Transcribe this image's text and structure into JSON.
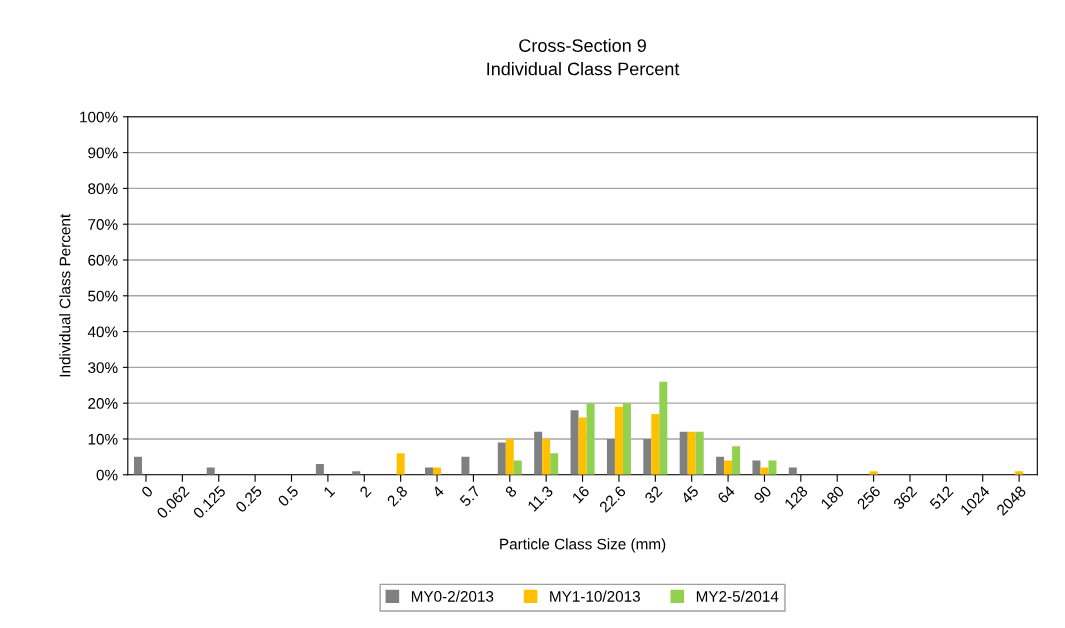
{
  "chart_data": {
    "type": "bar",
    "title": "Cross-Section 9\nIndividual Class Percent",
    "xlabel": "Particle Class Size (mm)",
    "ylabel": "Individual Class Percent",
    "categories": [
      "0",
      "0.062",
      "0.125",
      "0.25",
      "0.5",
      "1",
      "2",
      "2.8",
      "4",
      "5.7",
      "8",
      "11.3",
      "16",
      "22.6",
      "32",
      "45",
      "64",
      "90",
      "128",
      "180",
      "256",
      "362",
      "512",
      "1024",
      "2048"
    ],
    "series": [
      {
        "name": "MY0-2/2013",
        "color": "#808080",
        "values": [
          5,
          0,
          2,
          0,
          0,
          3,
          1,
          0,
          2,
          5,
          9,
          12,
          18,
          10,
          10,
          12,
          5,
          4,
          2,
          0,
          0,
          0,
          0,
          0,
          0
        ]
      },
      {
        "name": "MY1-10/2013",
        "color": "#ffc000",
        "values": [
          0,
          0,
          0,
          0,
          0,
          0,
          0,
          6,
          2,
          0,
          10,
          10,
          16,
          19,
          17,
          12,
          4,
          2,
          0,
          0,
          1,
          0,
          0,
          0,
          1
        ]
      },
      {
        "name": "MY2-5/2014",
        "color": "#92d050",
        "values": [
          0,
          0,
          0,
          0,
          0,
          0,
          0,
          0,
          0,
          0,
          4,
          6,
          20,
          20,
          26,
          12,
          8,
          4,
          0,
          0,
          0,
          0,
          0,
          0,
          0
        ]
      }
    ],
    "ylim": [
      0,
      100
    ],
    "yticks": [
      {
        "value": 0,
        "label": "0%"
      },
      {
        "value": 10,
        "label": "10%"
      },
      {
        "value": 20,
        "label": "20%"
      },
      {
        "value": 30,
        "label": "30%"
      },
      {
        "value": 40,
        "label": "40%"
      },
      {
        "value": 50,
        "label": "50%"
      },
      {
        "value": 60,
        "label": "60%"
      },
      {
        "value": 70,
        "label": "70%"
      },
      {
        "value": 80,
        "label": "80%"
      },
      {
        "value": 90,
        "label": "90%"
      },
      {
        "value": 100,
        "label": "100%"
      }
    ],
    "grid": "y",
    "legend": "bottom"
  }
}
